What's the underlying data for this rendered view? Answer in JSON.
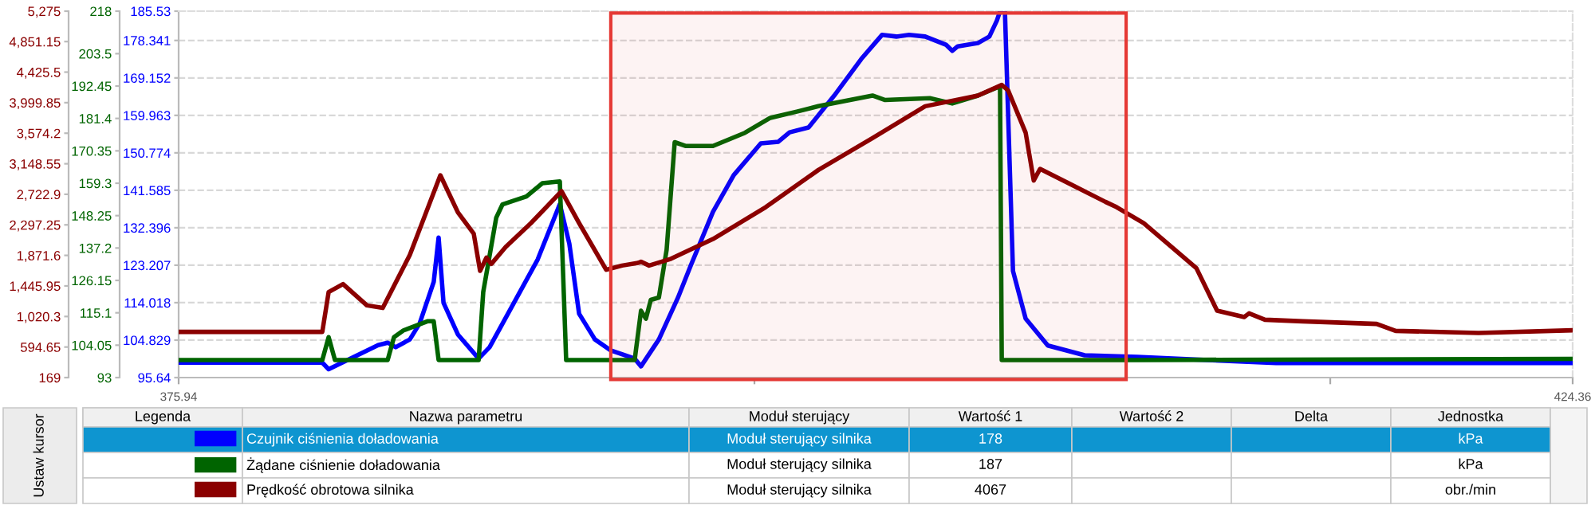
{
  "chart_data": {
    "type": "line",
    "xlim": [
      375.94,
      424.36
    ],
    "xticks": [
      375.94,
      {
        "value": 395.94,
        "label": null
      },
      {
        "value": 415.94,
        "label": null
      },
      424.36
    ],
    "ylim": [
      95.64,
      185.53
    ],
    "yticks": [
      95.64,
      104.829,
      114.018,
      123.207,
      132.396,
      141.585,
      150.774,
      159.963,
      169.152,
      178.341,
      185.53
    ],
    "y2lim": [
      93,
      218
    ],
    "y2ticks": [
      93,
      104.05,
      115.1,
      126.15,
      137.2,
      148.25,
      159.3,
      170.35,
      181.4,
      192.45,
      203.5,
      218
    ],
    "y3lim": [
      169,
      5275
    ],
    "y3ticks": [
      169,
      594.65,
      {
        "value": 1020.3,
        "label": "1,020.3"
      },
      {
        "value": 1445.95,
        "label": "1,445.95"
      },
      {
        "value": 1871.6,
        "label": "1,871.6"
      },
      {
        "value": 2297.25,
        "label": "2,297.25"
      },
      {
        "value": 2722.9,
        "label": "2,722.9"
      },
      {
        "value": 3148.55,
        "label": "3,148.55"
      },
      {
        "value": 3574.2,
        "label": "3,574.2"
      },
      {
        "value": 3999.85,
        "label": "3,999.85"
      },
      {
        "value": 4425.5,
        "label": "4,425.5"
      },
      {
        "value": 4851.15,
        "label": "4,851.15"
      },
      {
        "value": 5275,
        "label": "5,275"
      }
    ],
    "grid": "y",
    "legend": "bottom",
    "series": [
      {
        "name": "Czujnik ciśnienia doładowania",
        "color": "#0000ff",
        "axis": "y",
        "x": [
          375.94,
          380.93,
          381.15,
          382.87,
          383.2,
          383.48,
          383.97,
          384.31,
          384.8,
          384.97,
          385.14,
          385.64,
          386.36,
          386.74,
          388.41,
          389.18,
          389.51,
          389.85,
          390.4,
          390.95,
          391.78,
          392.0,
          392.62,
          393.28,
          393.72,
          394.5,
          395.22,
          396.16,
          396.77,
          397.16,
          397.82,
          398.71,
          399.65,
          400.37,
          400.87,
          401.31,
          401.87,
          402.59,
          402.81,
          403.0,
          403.7,
          404.1,
          404.36,
          404.47,
          404.64,
          404.92,
          405.36,
          406.13,
          407.41,
          409.24,
          414.06,
          424.36
        ],
        "values": [
          99.3,
          99.3,
          97.7,
          103.6,
          104.2,
          103.1,
          105.0,
          108.9,
          119.1,
          130.0,
          114.0,
          106.2,
          100.3,
          103.1,
          124.6,
          138.2,
          128.5,
          111.3,
          105.0,
          102.3,
          100.3,
          98.4,
          105.0,
          115.2,
          123.0,
          136.3,
          145.3,
          153.1,
          153.5,
          155.8,
          157.0,
          164.8,
          173.8,
          179.7,
          179.3,
          179.7,
          179.3,
          177.3,
          175.8,
          176.9,
          177.7,
          179.3,
          183.2,
          185.5,
          185.5,
          121.8,
          110.1,
          103.5,
          101.1,
          100.7,
          99.2,
          99.2
        ]
      },
      {
        "name": "Żądane ciśnienie doładowania",
        "color": "#006400",
        "axis": "y2",
        "x": [
          375.94,
          380.93,
          381.15,
          381.37,
          383.2,
          383.42,
          383.75,
          384.58,
          384.8,
          384.97,
          386.36,
          386.52,
          386.97,
          387.19,
          388.02,
          388.57,
          389.18,
          389.4,
          391.78,
          392.0,
          392.17,
          392.34,
          392.62,
          392.89,
          393.17,
          393.56,
          394.5,
          395.61,
          396.49,
          397.44,
          398.16,
          400.04,
          400.48,
          402.03,
          402.81,
          403.7,
          404.36,
          404.47,
          404.53,
          409.24,
          424.36
        ],
        "values": [
          99.0,
          99.0,
          106.8,
          99.0,
          99.0,
          106.8,
          109.1,
          112.2,
          112.2,
          99.0,
          99.0,
          122.2,
          147.5,
          152.1,
          154.8,
          159.3,
          159.9,
          99.0,
          99.0,
          115.8,
          113.1,
          119.5,
          120.3,
          136.6,
          173.3,
          172.0,
          172.0,
          176.5,
          181.6,
          183.8,
          185.6,
          189.2,
          187.7,
          188.3,
          186.5,
          189.2,
          191.9,
          191.9,
          99.0,
          99.0,
          99.4
        ]
      },
      {
        "name": "Prędkość obrotowa silnika",
        "color": "#8b0000",
        "axis": "y3",
        "x": [
          375.94,
          380.93,
          381.15,
          381.65,
          382.48,
          383.03,
          383.97,
          385.03,
          385.64,
          386.19,
          386.41,
          386.63,
          386.8,
          387.3,
          388.18,
          389.24,
          389.85,
          390.79,
          391.34,
          391.9,
          392.0,
          392.28,
          393.0,
          394.5,
          396.33,
          398.16,
          400.04,
          401.87,
          403.7,
          404.53,
          404.75,
          405.36,
          405.64,
          405.86,
          406.85,
          408.13,
          408.52,
          409.46,
          411.29,
          412.01,
          412.95,
          413.12,
          413.67,
          414.99,
          417.55,
          418.21,
          421.09,
          424.36
        ],
        "values": [
          806,
          806,
          1361,
          1472,
          1175,
          1139,
          1878,
          2988,
          2471,
          2174,
          1656,
          1841,
          1752,
          1989,
          2322,
          2766,
          2322,
          1672,
          1730,
          1767,
          1783,
          1730,
          1818,
          2100,
          2544,
          3062,
          3506,
          3950,
          4098,
          4247,
          4172,
          3581,
          2915,
          3077,
          2877,
          2618,
          2544,
          2322,
          1694,
          1101,
          1013,
          1064,
          975,
          953,
          917,
          820,
          791,
          828
        ]
      }
    ],
    "bands": [
      {
        "axis": "x",
        "from": 390.95,
        "to": 408.85,
        "color": "#e53935"
      }
    ],
    "annotations": [
      "Ustaw kursor",
      "Legenda",
      "Nazwa parametru",
      "Moduł sterujący",
      "Wartość 1",
      "Wartość 2",
      "Delta",
      "Jednostka",
      "Moduł sterujący silnika",
      "178",
      "kPa",
      "Moduł sterujący silnika",
      "187",
      "kPa",
      "Moduł sterujący silnika",
      "4067",
      "obr./min"
    ]
  }
}
